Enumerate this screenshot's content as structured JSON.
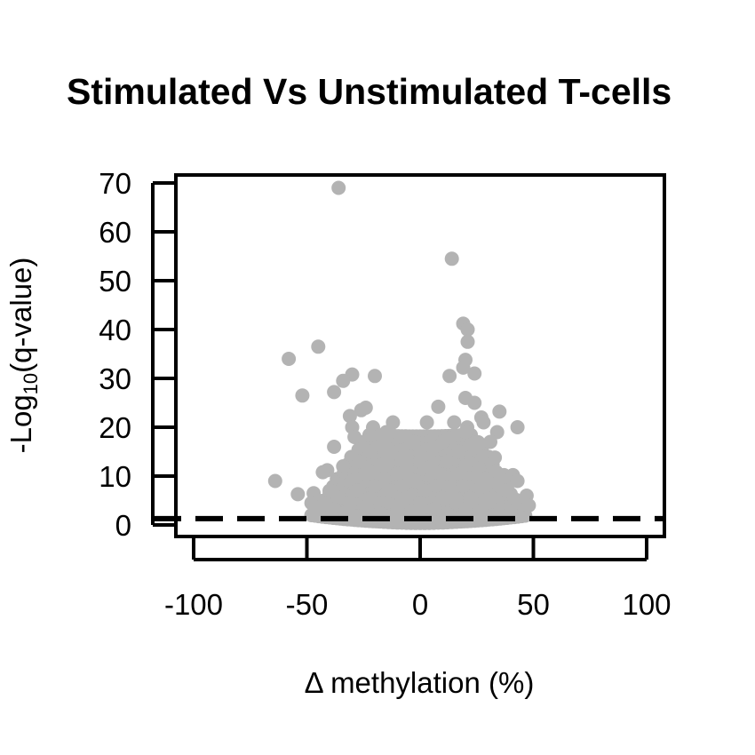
{
  "chart_data": {
    "type": "scatter",
    "title": "Stimulated Vs Unstimulated T-cells",
    "xlabel": "Δ methylation (%)",
    "ylabel_prefix": "-Log",
    "ylabel_sub": "10",
    "ylabel_suffix": "(q-value)",
    "xlim": [
      -100,
      100
    ],
    "ylim": [
      0,
      70
    ],
    "xticks": [
      -100,
      -50,
      0,
      50,
      100
    ],
    "xtick_labels": [
      "-100",
      "-50",
      "0",
      "50",
      "100"
    ],
    "yticks": [
      0,
      10,
      20,
      30,
      40,
      50,
      60,
      70
    ],
    "ytick_labels": [
      "0",
      "10",
      "20",
      "30",
      "40",
      "50",
      "60",
      "70"
    ],
    "threshold_y": 1.3,
    "point_color": "#b3b3b3",
    "threshold_color": "#000000",
    "grid": false,
    "series": [
      {
        "points": [
          [
            -36,
            69
          ],
          [
            14,
            54.5
          ],
          [
            19,
            41.2
          ],
          [
            21,
            40
          ],
          [
            21,
            37.5
          ],
          [
            -45,
            36.5
          ],
          [
            -58,
            34
          ],
          [
            20,
            33.8
          ],
          [
            19,
            32.2
          ],
          [
            24,
            31
          ],
          [
            13,
            30.5
          ],
          [
            -30,
            30.8
          ],
          [
            -34,
            29.5
          ],
          [
            -20,
            30.5
          ],
          [
            -52,
            26.5
          ],
          [
            -38,
            27.2
          ],
          [
            20,
            26
          ],
          [
            24,
            25
          ],
          [
            -26,
            23.5
          ],
          [
            -24,
            24
          ],
          [
            8,
            24.2
          ],
          [
            35,
            23.2
          ],
          [
            -31,
            22.3
          ],
          [
            27,
            22
          ],
          [
            -12,
            21
          ],
          [
            3,
            21
          ],
          [
            15,
            21
          ],
          [
            28,
            21
          ],
          [
            -30,
            20
          ],
          [
            43,
            20
          ],
          [
            -15,
            19
          ],
          [
            20,
            19
          ],
          [
            34,
            19
          ],
          [
            -38,
            16
          ],
          [
            -29,
            18
          ],
          [
            -9,
            18
          ],
          [
            -3,
            17
          ],
          [
            10,
            17
          ],
          [
            31,
            17
          ],
          [
            -19,
            16
          ],
          [
            6,
            16
          ],
          [
            24,
            16
          ],
          [
            -22,
            15
          ],
          [
            -14,
            15
          ],
          [
            0,
            14.8
          ],
          [
            17,
            15
          ],
          [
            28,
            14
          ],
          [
            33,
            13.8
          ],
          [
            -27,
            13
          ],
          [
            -6,
            13
          ],
          [
            12,
            13
          ],
          [
            22,
            12.5
          ],
          [
            -41,
            11.2
          ],
          [
            -34,
            12
          ],
          [
            -16,
            12
          ],
          [
            4,
            11.8
          ],
          [
            26,
            11.5
          ],
          [
            -43,
            10.8
          ],
          [
            -24,
            10.5
          ],
          [
            -10,
            10.5
          ],
          [
            9,
            10.2
          ],
          [
            18,
            10.5
          ],
          [
            37,
            10.2
          ],
          [
            41,
            10.2
          ],
          [
            -64,
            9
          ],
          [
            -30,
            9
          ],
          [
            -2,
            9
          ],
          [
            29,
            9.5
          ],
          [
            43,
            9
          ],
          [
            -20,
            8
          ],
          [
            -8,
            8
          ],
          [
            7,
            8
          ],
          [
            19,
            8
          ],
          [
            35,
            8
          ],
          [
            -40,
            7
          ],
          [
            -28,
            7
          ],
          [
            -13,
            7
          ],
          [
            2,
            7
          ],
          [
            14,
            7
          ],
          [
            25,
            7
          ],
          [
            38,
            7
          ],
          [
            -54,
            6.3
          ],
          [
            -47,
            6.5
          ],
          [
            47,
            6
          ],
          [
            -36,
            5.5
          ],
          [
            -22,
            5.5
          ],
          [
            -6,
            5.5
          ],
          [
            10,
            5.5
          ],
          [
            22,
            5.5
          ],
          [
            32,
            5.5
          ],
          [
            42,
            5.2
          ],
          [
            -48,
            4.5
          ],
          [
            -42,
            4.2
          ],
          [
            -31,
            4.5
          ],
          [
            -16,
            4.5
          ],
          [
            0,
            4.5
          ],
          [
            16,
            4.5
          ],
          [
            28,
            4.2
          ],
          [
            45,
            4.2
          ],
          [
            48,
            4
          ],
          [
            -45,
            3.5
          ],
          [
            -38,
            3.2
          ],
          [
            -25,
            3.5
          ],
          [
            -10,
            3.2
          ],
          [
            6,
            3.2
          ],
          [
            20,
            3.2
          ],
          [
            35,
            3.2
          ],
          [
            -46,
            3
          ],
          [
            -33,
            2.6
          ],
          [
            -18,
            2.4
          ],
          [
            -3,
            2.2
          ],
          [
            12,
            2.3
          ],
          [
            26,
            2.6
          ],
          [
            40,
            2.8
          ],
          [
            -28,
            1.8
          ],
          [
            -12,
            1.2
          ],
          [
            3,
            0.8
          ],
          [
            18,
            1.5
          ],
          [
            32,
            2
          ]
        ]
      }
    ],
    "dense_region": {
      "center_x": 0,
      "half_width": 48,
      "cap_left": -20,
      "cap_right": 20,
      "cap_height": 19,
      "cap_ramp": 28,
      "min_y": 0.5
    }
  }
}
